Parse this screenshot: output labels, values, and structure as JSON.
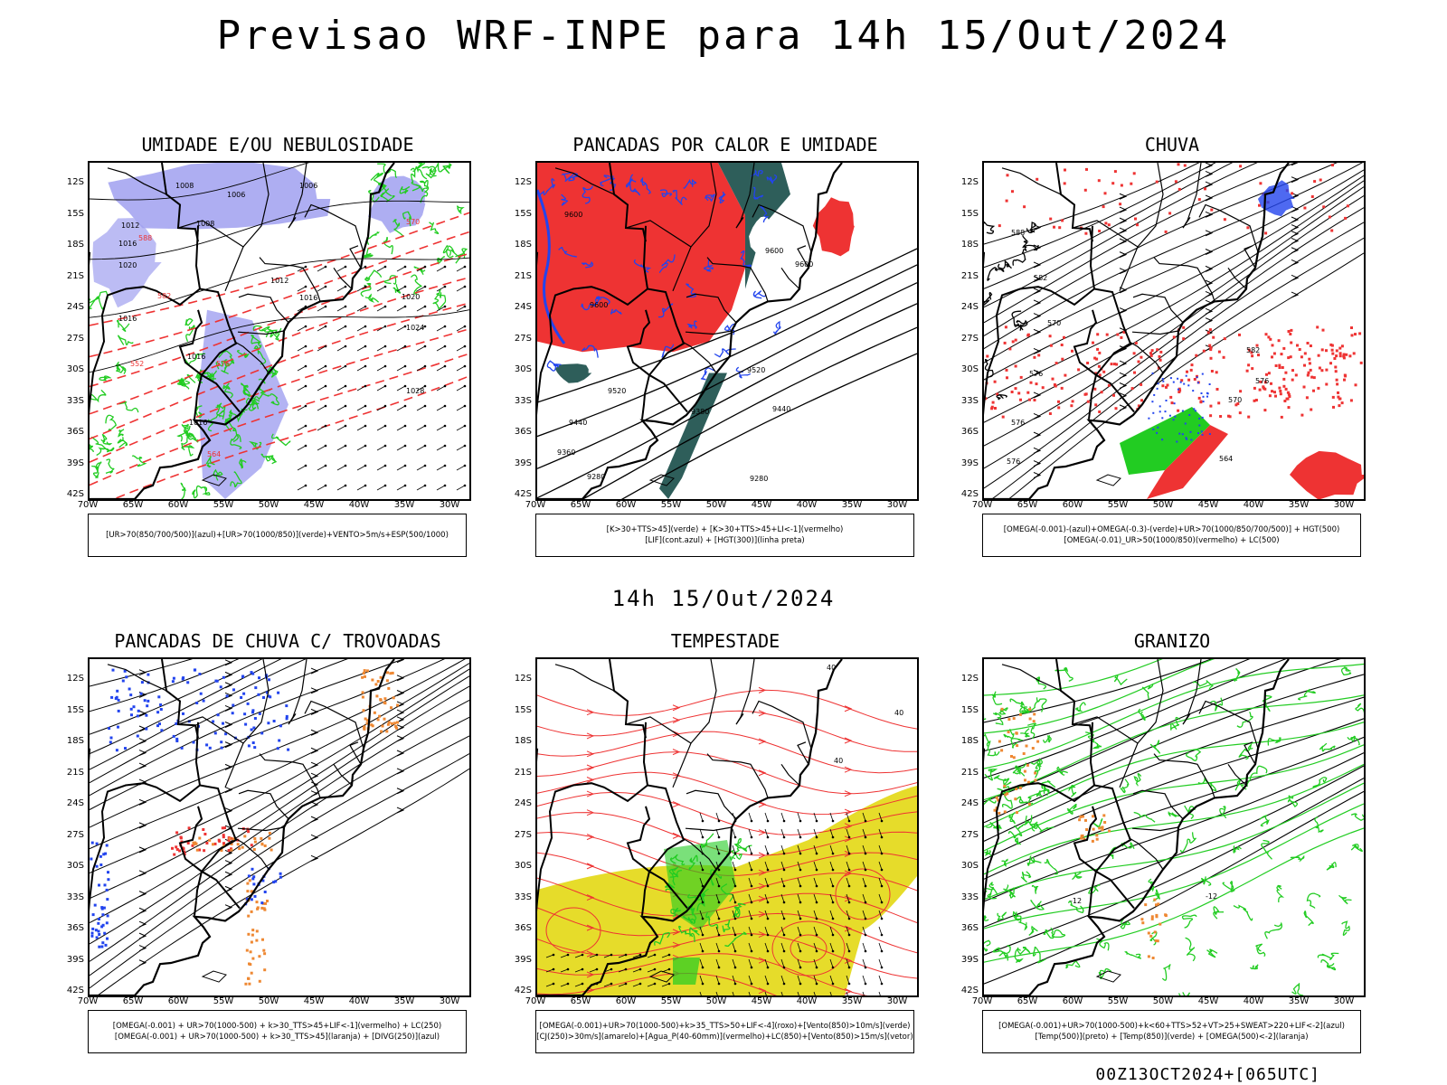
{
  "title": "Previsao WRF-INPE  para 14h 15/Out/2024",
  "subtitle": "14h 15/Out/2024",
  "footer": "00Z13OCT2024+[065UTC]",
  "lat_labels": [
    "12S",
    "15S",
    "18S",
    "21S",
    "24S",
    "27S",
    "30S",
    "33S",
    "36S",
    "39S",
    "42S"
  ],
  "lon_labels": [
    "70W",
    "65W",
    "60W",
    "55W",
    "50W",
    "45W",
    "40W",
    "35W",
    "30W"
  ],
  "colors": {
    "blue_fill": "#a0a0f0",
    "green_line": "#22cc22",
    "red": "#ee3333",
    "dark_teal": "#2e5e5a",
    "blue": "#2244ee",
    "orange": "#ee8833",
    "yellow": "#e6dc2a"
  },
  "panels": [
    {
      "title": "UMIDADE E/OU NEBULOSIDADE",
      "legend": [
        "[UR>70(850/700/500)](azul)+[UR>70(1000/850)](verde)+VENTO>5m/s+ESP(500/1000)"
      ],
      "labels": [
        "1008",
        "1006",
        "1006",
        "1012",
        "1008",
        "1012",
        "1016",
        "1016",
        "1020",
        "1024",
        "1028",
        "1016",
        "1016",
        "1020",
        "1016",
        "576",
        "570",
        "582",
        "588",
        "552",
        "564"
      ]
    },
    {
      "title": "PANCADAS POR CALOR E UMIDADE",
      "legend": [
        "[K>30+TTS>45](verde) + [K>30+TTS>45+LI<-1](vermelho)",
        "[LIF](cont.azul) + [HGT(300)](linha preta)"
      ],
      "labels": [
        "9600",
        "9600",
        "9600",
        "9600",
        "9520",
        "9520",
        "9440",
        "9440",
        "9380",
        "9360",
        "9280",
        "9280"
      ]
    },
    {
      "title": "CHUVA",
      "legend": [
        "[OMEGA(-0.001)-(azul)+OMEGA(-0.3)-(verde)+UR>70(1000/850/700/500)] + HGT(500)",
        "[OMEGA(-0.01)_UR>50(1000/850)(vermelho) + LC(500)"
      ],
      "labels": [
        "588",
        "582",
        "576",
        "582",
        "576",
        "570",
        "576",
        "570",
        "576",
        "564"
      ]
    },
    {
      "title": "PANCADAS DE CHUVA C/ TROVOADAS",
      "legend": [
        "[OMEGA(-0.001) + UR>70(1000-500) + k>30_TTS>45+LIF<-1](vermelho) + LC(250)",
        "[OMEGA(-0.001) + UR>70(1000-500) + k>30_TTS>45](laranja) + [DIVG(250)](azul)"
      ],
      "labels": []
    },
    {
      "title": "TEMPESTADE",
      "legend": [
        "[OMEGA(-0.001)+UR>70(1000-500)+k>35_TTS>50+LIF<-4](roxo)+[Vento(850)>10m/s](verde)",
        "[CJ(250)>30m/s](amarelo)+[Agua_P(40-60mm)](vermelho)+LC(850)+[Vento(850)>15m/s](vetor)"
      ],
      "labels": [
        "40",
        "40",
        "40"
      ]
    },
    {
      "title": "GRANIZO",
      "legend": [
        "[OMEGA(-0.001)+UR>70(1000-500)+k<60+TTS>52+VT>25+SWEAT>220+LIF<-2](azul)",
        "[Temp(500)](preto) + [Temp(850)](verde) + [OMEGA(500)<-2](laranja)"
      ],
      "labels": [
        "-12",
        "-12"
      ]
    }
  ]
}
